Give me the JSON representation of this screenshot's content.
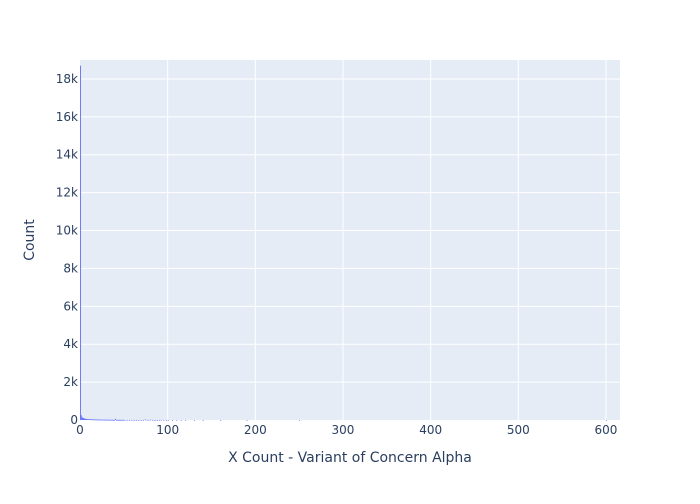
{
  "chart_data": {
    "type": "bar",
    "title": "",
    "xlabel": "X Count - Variant of Concern Alpha",
    "ylabel": "Count",
    "x_ticks": [
      0,
      100,
      200,
      300,
      400,
      500,
      600
    ],
    "x_tick_labels": [
      "0",
      "100",
      "200",
      "300",
      "400",
      "500",
      "600"
    ],
    "y_ticks": [
      0,
      2000,
      4000,
      6000,
      8000,
      10000,
      12000,
      14000,
      16000,
      18000
    ],
    "y_tick_labels": [
      "0",
      "2k",
      "4k",
      "6k",
      "8k",
      "10k",
      "12k",
      "14k",
      "16k",
      "18k"
    ],
    "xlim": [
      0,
      616
    ],
    "ylim": [
      0,
      19000
    ],
    "bin_width": 1,
    "grid": true,
    "colors": {
      "bar": "#636efa",
      "plot_background": "#e5ecf6",
      "grid": "#ffffff",
      "text": "#2a3f5f"
    },
    "series": [
      {
        "bins": [
          [
            0,
            18700
          ],
          [
            1,
            250
          ],
          [
            2,
            140
          ],
          [
            3,
            110
          ],
          [
            4,
            90
          ],
          [
            5,
            75
          ],
          [
            6,
            65
          ],
          [
            7,
            55
          ],
          [
            8,
            50
          ],
          [
            9,
            45
          ],
          [
            10,
            45
          ],
          [
            11,
            40
          ],
          [
            12,
            40
          ],
          [
            13,
            35
          ],
          [
            14,
            35
          ],
          [
            15,
            30
          ],
          [
            16,
            30
          ],
          [
            17,
            30
          ],
          [
            18,
            28
          ],
          [
            19,
            26
          ],
          [
            20,
            25
          ],
          [
            21,
            24
          ],
          [
            22,
            22
          ],
          [
            23,
            22
          ],
          [
            24,
            20
          ],
          [
            25,
            20
          ],
          [
            26,
            18
          ],
          [
            27,
            18
          ],
          [
            28,
            17
          ],
          [
            29,
            16
          ],
          [
            30,
            16
          ],
          [
            31,
            15
          ],
          [
            32,
            14
          ],
          [
            33,
            14
          ],
          [
            34,
            13
          ],
          [
            35,
            12
          ],
          [
            36,
            12
          ],
          [
            37,
            11
          ],
          [
            38,
            10
          ],
          [
            39,
            10
          ],
          [
            40,
            60
          ],
          [
            41,
            10
          ],
          [
            42,
            9
          ],
          [
            43,
            9
          ],
          [
            44,
            8
          ],
          [
            45,
            8
          ],
          [
            46,
            8
          ],
          [
            47,
            7
          ],
          [
            48,
            7
          ],
          [
            49,
            7
          ],
          [
            50,
            6
          ],
          [
            52,
            6
          ],
          [
            54,
            5
          ],
          [
            56,
            5
          ],
          [
            58,
            5
          ],
          [
            60,
            4
          ],
          [
            62,
            4
          ],
          [
            64,
            4
          ],
          [
            66,
            4
          ],
          [
            68,
            3
          ],
          [
            70,
            3
          ],
          [
            72,
            3
          ],
          [
            74,
            35
          ],
          [
            76,
            3
          ],
          [
            78,
            3
          ],
          [
            80,
            20
          ],
          [
            82,
            2
          ],
          [
            84,
            2
          ],
          [
            86,
            2
          ],
          [
            88,
            2
          ],
          [
            90,
            2
          ],
          [
            92,
            2
          ],
          [
            95,
            2
          ],
          [
            98,
            1
          ],
          [
            100,
            1
          ],
          [
            105,
            1
          ],
          [
            110,
            1
          ],
          [
            115,
            1
          ],
          [
            120,
            1
          ],
          [
            130,
            1
          ],
          [
            140,
            1
          ],
          [
            160,
            1
          ],
          [
            190,
            1
          ],
          [
            250,
            1
          ],
          [
            600,
            1
          ]
        ]
      }
    ]
  }
}
